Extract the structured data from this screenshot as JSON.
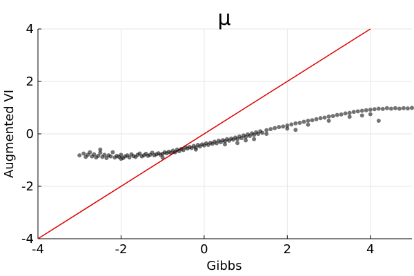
{
  "chart_data": {
    "type": "scatter",
    "title": "μ",
    "xlabel": "Gibbs",
    "ylabel": "Augmented VI",
    "xlim": [
      -4,
      5
    ],
    "ylim": [
      -4,
      4
    ],
    "xticks": [
      -4,
      -2,
      0,
      2,
      4
    ],
    "yticks": [
      -4,
      -2,
      0,
      2,
      4
    ],
    "xtick_labels": [
      "-4",
      "-2",
      "0",
      "2",
      "4"
    ],
    "ytick_labels": [
      "-4",
      "-2",
      "0",
      "2",
      "4"
    ],
    "grid": true,
    "legend": "none",
    "colors": {
      "points": "#000000",
      "reference_line": "#e00000",
      "grid": "#e6e6e6"
    },
    "reference_line": {
      "x": [
        -4,
        5
      ],
      "y": [
        -4,
        5
      ]
    },
    "series": [
      {
        "values_description": "",
        "points": [
          [
            -3.0,
            -0.82
          ],
          [
            -2.9,
            -0.75
          ],
          [
            -2.85,
            -0.88
          ],
          [
            -2.8,
            -0.8
          ],
          [
            -2.75,
            -0.7
          ],
          [
            -2.7,
            -0.86
          ],
          [
            -2.65,
            -0.78
          ],
          [
            -2.6,
            -0.9
          ],
          [
            -2.55,
            -0.84
          ],
          [
            -2.5,
            -0.72
          ],
          [
            -2.45,
            -0.88
          ],
          [
            -2.4,
            -0.8
          ],
          [
            -2.35,
            -0.92
          ],
          [
            -2.3,
            -0.82
          ],
          [
            -2.25,
            -0.86
          ],
          [
            -2.2,
            -0.7
          ],
          [
            -2.15,
            -0.9
          ],
          [
            -2.1,
            -0.84
          ],
          [
            -2.05,
            -0.88
          ],
          [
            -2.0,
            -0.8
          ],
          [
            -1.95,
            -0.92
          ],
          [
            -1.9,
            -0.86
          ],
          [
            -1.85,
            -0.82
          ],
          [
            -1.8,
            -0.9
          ],
          [
            -1.75,
            -0.78
          ],
          [
            -1.7,
            -0.85
          ],
          [
            -1.65,
            -0.88
          ],
          [
            -1.6,
            -0.8
          ],
          [
            -1.55,
            -0.75
          ],
          [
            -1.5,
            -0.86
          ],
          [
            -1.45,
            -0.82
          ],
          [
            -1.4,
            -0.76
          ],
          [
            -1.35,
            -0.84
          ],
          [
            -1.3,
            -0.8
          ],
          [
            -1.25,
            -0.72
          ],
          [
            -1.2,
            -0.82
          ],
          [
            -1.15,
            -0.78
          ],
          [
            -1.1,
            -0.74
          ],
          [
            -1.05,
            -0.8
          ],
          [
            -1.0,
            -0.76
          ],
          [
            -0.95,
            -0.7
          ],
          [
            -0.9,
            -0.74
          ],
          [
            -0.85,
            -0.68
          ],
          [
            -0.8,
            -0.72
          ],
          [
            -0.75,
            -0.64
          ],
          [
            -0.7,
            -0.7
          ],
          [
            -0.65,
            -0.6
          ],
          [
            -0.6,
            -0.66
          ],
          [
            -0.55,
            -0.58
          ],
          [
            -0.5,
            -0.62
          ],
          [
            -0.45,
            -0.52
          ],
          [
            -0.4,
            -0.56
          ],
          [
            -0.35,
            -0.5
          ],
          [
            -0.3,
            -0.54
          ],
          [
            -0.25,
            -0.46
          ],
          [
            -0.2,
            -0.52
          ],
          [
            -0.15,
            -0.42
          ],
          [
            -0.1,
            -0.48
          ],
          [
            -0.05,
            -0.4
          ],
          [
            0.0,
            -0.44
          ],
          [
            0.05,
            -0.36
          ],
          [
            0.1,
            -0.42
          ],
          [
            0.15,
            -0.34
          ],
          [
            0.2,
            -0.38
          ],
          [
            0.25,
            -0.3
          ],
          [
            0.3,
            -0.36
          ],
          [
            0.35,
            -0.26
          ],
          [
            0.4,
            -0.32
          ],
          [
            0.45,
            -0.24
          ],
          [
            0.5,
            -0.28
          ],
          [
            0.55,
            -0.2
          ],
          [
            0.6,
            -0.26
          ],
          [
            0.65,
            -0.18
          ],
          [
            0.7,
            -0.22
          ],
          [
            0.75,
            -0.14
          ],
          [
            0.8,
            -0.2
          ],
          [
            0.85,
            -0.1
          ],
          [
            0.9,
            -0.16
          ],
          [
            0.95,
            -0.06
          ],
          [
            1.0,
            -0.12
          ],
          [
            1.05,
            -0.02
          ],
          [
            1.1,
            -0.08
          ],
          [
            1.15,
            0.02
          ],
          [
            1.2,
            -0.04
          ],
          [
            1.25,
            0.06
          ],
          [
            1.3,
            0.0
          ],
          [
            1.35,
            0.1
          ],
          [
            1.4,
            0.04
          ],
          [
            1.5,
            0.14
          ],
          [
            1.6,
            0.18
          ],
          [
            1.7,
            0.22
          ],
          [
            1.8,
            0.26
          ],
          [
            1.9,
            0.28
          ],
          [
            2.0,
            0.32
          ],
          [
            2.1,
            0.36
          ],
          [
            2.2,
            0.4
          ],
          [
            2.3,
            0.42
          ],
          [
            2.4,
            0.46
          ],
          [
            2.5,
            0.5
          ],
          [
            2.6,
            0.52
          ],
          [
            2.7,
            0.56
          ],
          [
            2.8,
            0.6
          ],
          [
            2.9,
            0.62
          ],
          [
            3.0,
            0.66
          ],
          [
            3.1,
            0.68
          ],
          [
            3.2,
            0.72
          ],
          [
            3.3,
            0.74
          ],
          [
            3.4,
            0.78
          ],
          [
            3.5,
            0.8
          ],
          [
            3.6,
            0.84
          ],
          [
            3.7,
            0.86
          ],
          [
            3.8,
            0.88
          ],
          [
            3.9,
            0.9
          ],
          [
            4.0,
            0.92
          ],
          [
            4.1,
            0.94
          ],
          [
            4.2,
            0.96
          ],
          [
            4.3,
            0.95
          ],
          [
            4.4,
            0.98
          ],
          [
            4.5,
            0.96
          ],
          [
            4.6,
            0.98
          ],
          [
            4.7,
            0.96
          ],
          [
            4.8,
            0.98
          ],
          [
            4.9,
            0.97
          ],
          [
            5.0,
            0.99
          ],
          [
            0.5,
            -0.4
          ],
          [
            1.0,
            -0.25
          ],
          [
            1.5,
            0.0
          ],
          [
            2.0,
            0.2
          ],
          [
            2.5,
            0.35
          ],
          [
            3.0,
            0.5
          ],
          [
            3.5,
            0.65
          ],
          [
            4.0,
            0.75
          ],
          [
            4.2,
            0.5
          ],
          [
            3.8,
            0.7
          ],
          [
            2.2,
            0.15
          ],
          [
            1.2,
            -0.2
          ],
          [
            0.8,
            -0.35
          ],
          [
            -0.2,
            -0.6
          ],
          [
            -1.0,
            -0.9
          ],
          [
            -2.0,
            -0.95
          ],
          [
            -2.5,
            -0.6
          ]
        ]
      }
    ]
  }
}
